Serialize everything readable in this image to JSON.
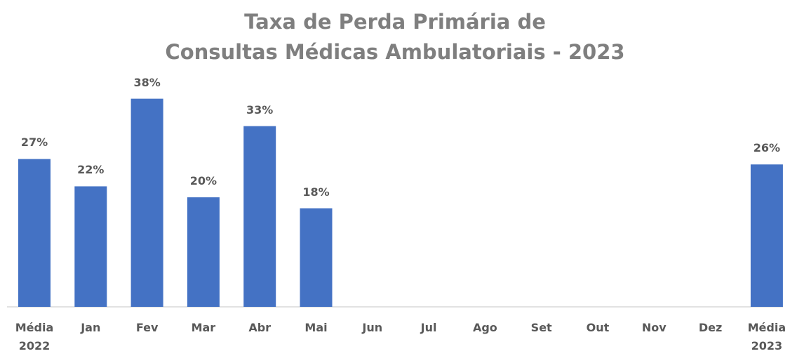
{
  "chart_data": {
    "type": "bar",
    "title": "Taxa de Perda Primária de\nConsultas Médicas Ambulatoriais - 2023",
    "categories": [
      "Média\n2022",
      "Jan",
      "Fev",
      "Mar",
      "Abr",
      "Mai",
      "Jun",
      "Jul",
      "Ago",
      "Set",
      "Out",
      "Nov",
      "Dez",
      "Média\n2023"
    ],
    "values": [
      27,
      22,
      38,
      20,
      33,
      18,
      null,
      null,
      null,
      null,
      null,
      null,
      null,
      26
    ],
    "value_labels": [
      "27%",
      "22%",
      "38%",
      "20%",
      "33%",
      "18%",
      null,
      null,
      null,
      null,
      null,
      null,
      null,
      "26%"
    ],
    "color": "#4472c4"
  }
}
